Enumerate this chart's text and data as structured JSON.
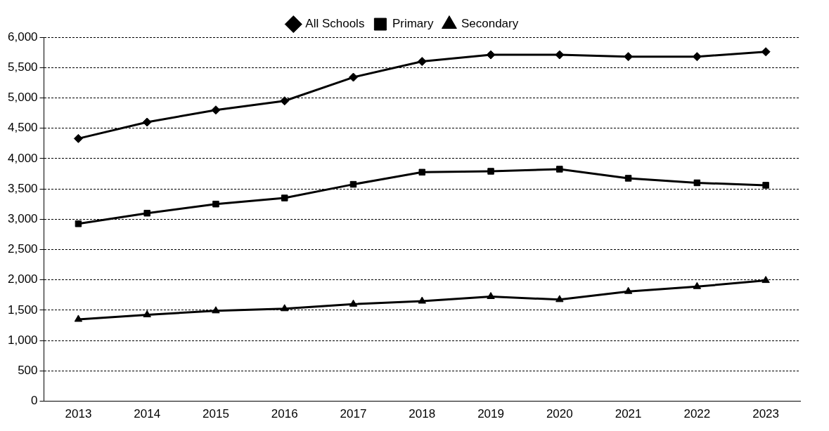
{
  "chart_data": {
    "type": "line",
    "categories": [
      "2013",
      "2014",
      "2015",
      "2016",
      "2017",
      "2018",
      "2019",
      "2020",
      "2021",
      "2022",
      "2023"
    ],
    "series": [
      {
        "name": "All Schools",
        "color": "#000000",
        "marker": "diamond",
        "values": [
          4330,
          4600,
          4800,
          4950,
          5340,
          5600,
          5710,
          5710,
          5680,
          5680,
          5760
        ]
      },
      {
        "name": "Primary",
        "color": "#000000",
        "marker": "square",
        "values": [
          2925,
          3100,
          3250,
          3350,
          3575,
          3775,
          3790,
          3825,
          3675,
          3600,
          3560
        ]
      },
      {
        "name": "Secondary",
        "color": "#000000",
        "marker": "triangle",
        "values": [
          1350,
          1425,
          1490,
          1525,
          1600,
          1650,
          1725,
          1675,
          1810,
          1890,
          1990
        ]
      }
    ],
    "ylim": [
      0,
      6000
    ],
    "yticks": [
      {
        "value": 0,
        "label": "0"
      },
      {
        "value": 500,
        "label": "500"
      },
      {
        "value": 1000,
        "label": "1,000"
      },
      {
        "value": 1500,
        "label": "1,500"
      },
      {
        "value": 2000,
        "label": "2,000"
      },
      {
        "value": 2500,
        "label": "2,500"
      },
      {
        "value": 3000,
        "label": "3,000"
      },
      {
        "value": 3500,
        "label": "3,500"
      },
      {
        "value": 4000,
        "label": "4,000"
      },
      {
        "value": 4500,
        "label": "4,500"
      },
      {
        "value": 5000,
        "label": "5,000"
      },
      {
        "value": 5500,
        "label": "5,500"
      },
      {
        "value": 6000,
        "label": "6,000"
      }
    ],
    "grid": "y",
    "legend": "top",
    "line_style": "solid"
  }
}
